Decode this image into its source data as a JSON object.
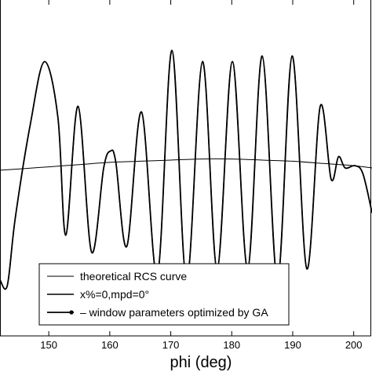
{
  "chart_data": {
    "type": "line",
    "title": "",
    "xlabel": "phi (deg)",
    "ylabel": "",
    "xlim": [
      142,
      203
    ],
    "ylim": [
      -1.5,
      1.5
    ],
    "grid": false,
    "x_ticks": [
      150,
      160,
      170,
      180,
      190,
      200
    ],
    "x_tick_labels": [
      "150",
      "160",
      "170",
      "180",
      "190",
      "200"
    ],
    "legend": {
      "placement": "bottom",
      "entries": [
        {
          "label": "theoretical RCS curve",
          "marker": "none"
        },
        {
          "label": "x%=0,mpd=0°",
          "marker": "none"
        },
        {
          "label": "window parameters optimized by GA",
          "marker": "dot"
        }
      ]
    },
    "series": [
      {
        "x": [
          142,
          145,
          150,
          155,
          160,
          165,
          170,
          175,
          180,
          185,
          190,
          195,
          200,
          203
        ],
        "y": [
          -0.02,
          -0.01,
          0.01,
          0.03,
          0.05,
          0.06,
          0.07,
          0.08,
          0.08,
          0.07,
          0.06,
          0.04,
          0.02,
          0.0
        ]
      },
      {
        "x": [
          142,
          143.2,
          144.5,
          147,
          149.3,
          151.5,
          152.8,
          154.8,
          157,
          159,
          160.1,
          161,
          162.8,
          165.2,
          167.8,
          170.2,
          172.6,
          175.2,
          177.6,
          180.1,
          182.6,
          185,
          187.5,
          189.9,
          192.3,
          194.5,
          196.3,
          197.5,
          198.6,
          200.2,
          201.5,
          203
        ],
        "y": [
          -1.0,
          -1.05,
          -0.45,
          0.4,
          0.95,
          0.45,
          -0.6,
          0.55,
          -0.75,
          0.0,
          0.15,
          0.05,
          -0.7,
          0.5,
          -0.96,
          1.05,
          -1.01,
          0.95,
          -0.9,
          0.95,
          -0.9,
          1.0,
          -1.0,
          1.0,
          -0.9,
          0.55,
          -0.1,
          0.1,
          0.0,
          0.02,
          -0.05,
          -0.4
        ]
      },
      {
        "x": [
          142,
          143.2,
          144.5,
          147,
          149.3,
          151.5,
          152.8,
          154.8,
          157,
          159,
          160.1,
          161,
          162.8,
          165.2,
          167.8,
          170.2,
          172.6,
          175.2,
          177.6,
          180.1,
          182.6,
          185,
          187.5,
          189.9,
          192.3,
          194.5,
          196.3,
          197.5,
          198.6,
          200.2,
          201.5,
          203
        ],
        "y": [
          -1.0,
          -1.05,
          -0.45,
          0.4,
          0.95,
          0.45,
          -0.6,
          0.55,
          -0.75,
          0.0,
          0.15,
          0.05,
          -0.7,
          0.5,
          -0.96,
          1.05,
          -1.01,
          0.95,
          -0.9,
          0.95,
          -0.9,
          1.0,
          -1.0,
          1.0,
          -0.9,
          0.55,
          -0.1,
          0.1,
          0.0,
          0.02,
          -0.05,
          -0.4
        ]
      }
    ]
  }
}
